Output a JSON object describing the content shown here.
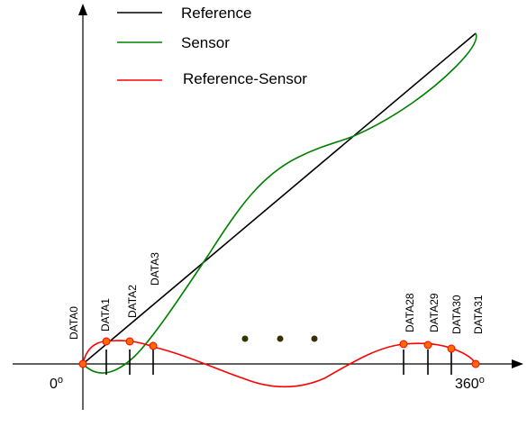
{
  "legend": [
    {
      "label": "Reference",
      "color": "#000000"
    },
    {
      "label": "Sensor",
      "color": "#008000"
    },
    {
      "label": "Reference-Sensor",
      "color": "#ff0000"
    }
  ],
  "axis": {
    "origin_label": "0",
    "end_label": "360",
    "degree_symbol": "o"
  },
  "data_labels": {
    "left": [
      "DATA0",
      "DATA1",
      "DATA2",
      "DATA3"
    ],
    "right": [
      "DATA28",
      "DATA29",
      "DATA30",
      "DATA31"
    ]
  },
  "colors": {
    "axis": "#000000",
    "reference": "#000000",
    "sensor": "#008000",
    "difference": "#ff0000",
    "marker_fill": "#ff6a00",
    "marker_stroke": "#ff0000",
    "ellipsis_dot": "#333300"
  },
  "ellipsis_dots": 3
}
